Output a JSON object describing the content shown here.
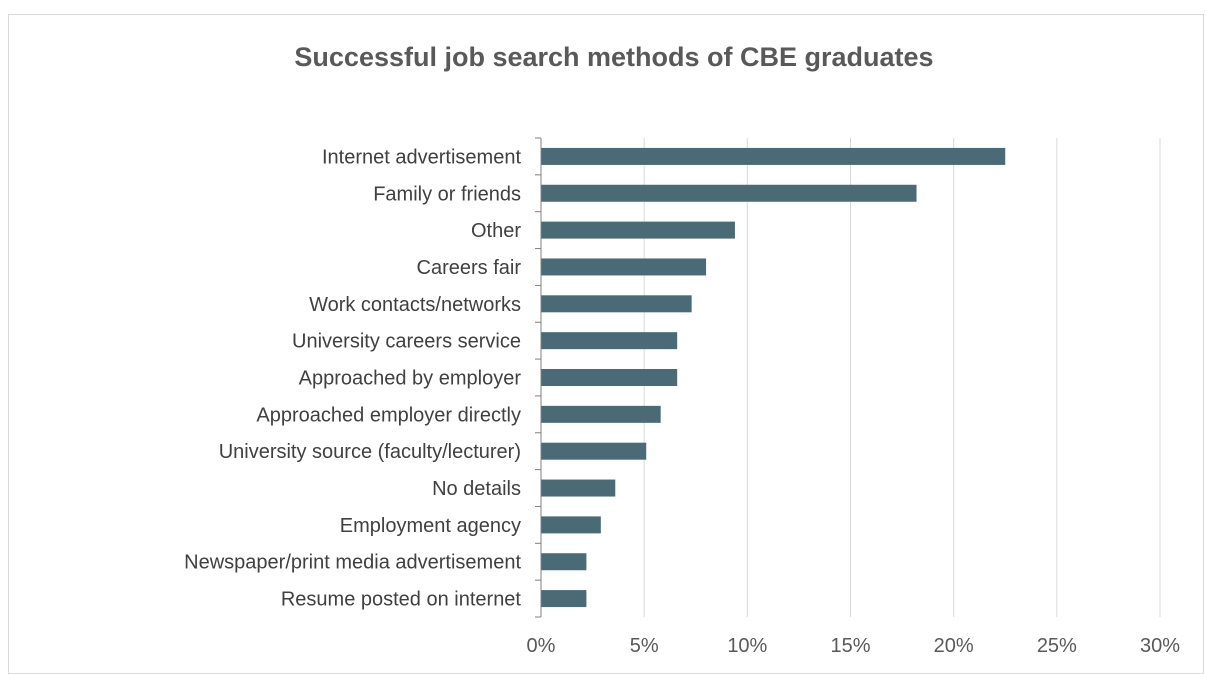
{
  "chart_data": {
    "type": "bar",
    "orientation": "horizontal",
    "title": "Successful job search methods of CBE graduates",
    "xlabel": "",
    "ylabel": "",
    "categories": [
      "Internet advertisement",
      "Family or friends",
      "Other",
      "Careers fair",
      "Work contacts/networks",
      "University careers service",
      "Approached by employer",
      "Approached employer directly",
      "University source (faculty/lecturer)",
      "No details",
      "Employment agency",
      "Newspaper/print media advertisement",
      "Resume posted on internet"
    ],
    "values": [
      22.5,
      18.2,
      9.4,
      8.0,
      7.3,
      6.6,
      6.6,
      5.8,
      5.1,
      3.6,
      2.9,
      2.2,
      2.2
    ],
    "value_unit": "%",
    "xlim": [
      0,
      30
    ],
    "xticks": [
      0,
      5,
      10,
      15,
      20,
      25,
      30
    ],
    "xtick_labels": [
      "0%",
      "5%",
      "10%",
      "15%",
      "20%",
      "25%",
      "30%"
    ],
    "grid": "vertical",
    "legend": "none",
    "bar_color": "#4a6b75"
  }
}
